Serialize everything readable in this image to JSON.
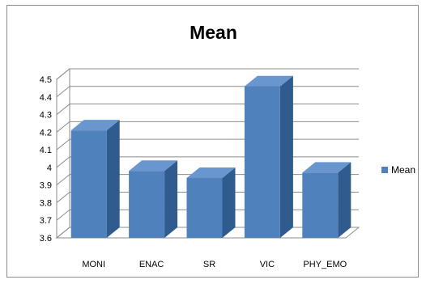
{
  "chart_data": {
    "type": "bar",
    "title": "Mean",
    "categories": [
      "MONI",
      "ENAC",
      "SR",
      "VIC",
      "PHY_EMO"
    ],
    "series": [
      {
        "name": "Mean",
        "values": [
          4.21,
          3.98,
          3.94,
          4.46,
          3.97
        ]
      }
    ],
    "ylim": [
      3.6,
      4.5
    ],
    "yticks": [
      "3.6",
      "3.7",
      "3.8",
      "3.9",
      "4",
      "4.1",
      "4.2",
      "4.3",
      "4.4",
      "4.5"
    ],
    "grid": true,
    "legend_position": "right",
    "colors": {
      "bar_front": "#4f81bd",
      "bar_side": "#2f5b8f",
      "bar_top": "#6a96cf"
    }
  }
}
